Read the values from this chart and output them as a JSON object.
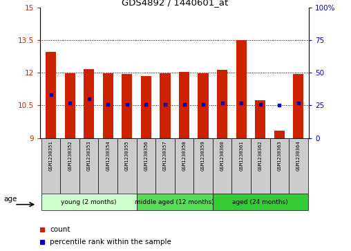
{
  "title": "GDS4892 / 1440601_at",
  "samples": [
    "GSM1230351",
    "GSM1230352",
    "GSM1230353",
    "GSM1230354",
    "GSM1230355",
    "GSM1230356",
    "GSM1230357",
    "GSM1230358",
    "GSM1230359",
    "GSM1230360",
    "GSM1230361",
    "GSM1230362",
    "GSM1230363",
    "GSM1230364"
  ],
  "counts": [
    12.95,
    11.97,
    12.18,
    11.97,
    11.95,
    11.85,
    11.97,
    12.05,
    11.97,
    12.12,
    13.5,
    10.75,
    9.35,
    11.95
  ],
  "percentiles": [
    33,
    27,
    30,
    26,
    26,
    26,
    26,
    26,
    26,
    27,
    27,
    26,
    25,
    27
  ],
  "y_min": 9,
  "y_max": 15,
  "y_ticks": [
    9,
    10.5,
    12,
    13.5,
    15
  ],
  "y2_ticks": [
    0,
    25,
    50,
    75,
    100
  ],
  "bar_color": "#cc2200",
  "percentile_color": "#0000cc",
  "groups": [
    {
      "label": "young (2 months)",
      "start": 0,
      "end": 4,
      "color": "#ccffcc"
    },
    {
      "label": "middle aged (12 months)",
      "start": 5,
      "end": 8,
      "color": "#55dd55"
    },
    {
      "label": "aged (24 months)",
      "start": 9,
      "end": 13,
      "color": "#33cc33"
    }
  ],
  "age_label": "age",
  "legend_count_label": "count",
  "legend_pct_label": "percentile rank within the sample",
  "bg_plot": "#ffffff",
  "bg_label": "#cccccc",
  "grid_yticks": [
    10.5,
    12,
    13.5
  ]
}
